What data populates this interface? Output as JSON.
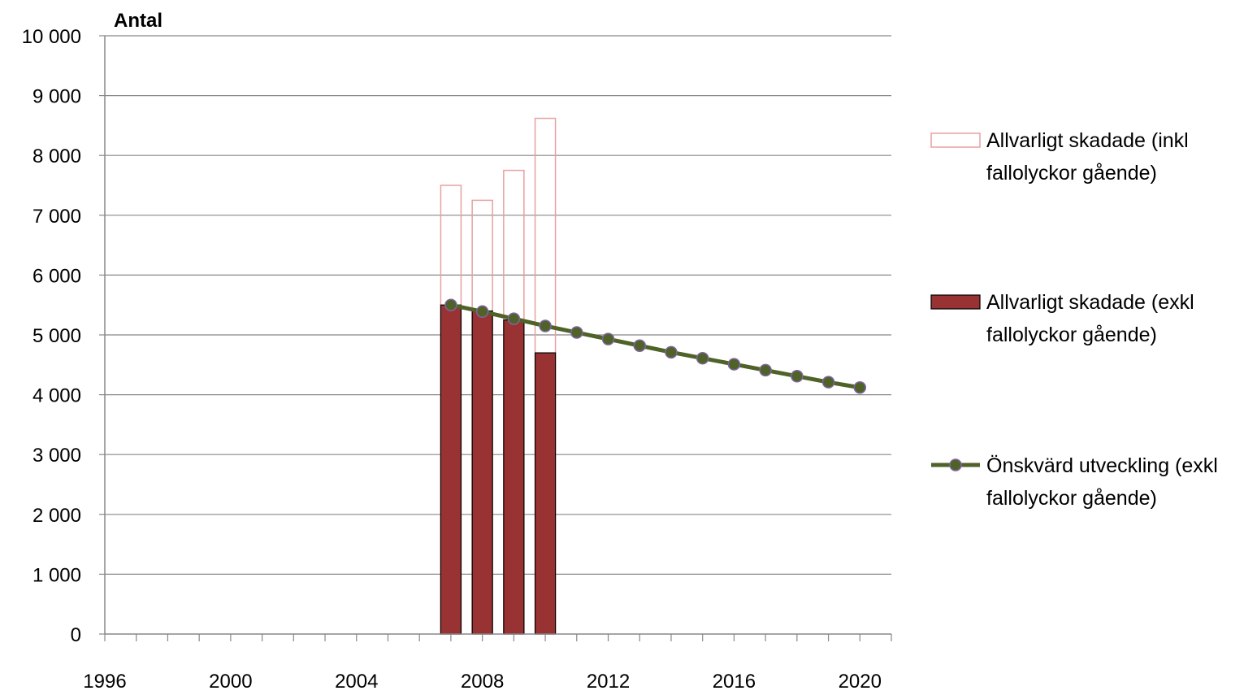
{
  "chart_data": {
    "type": "bar",
    "title": "",
    "ylabel": "Antal",
    "xlabel": "",
    "ylim": [
      0,
      10000
    ],
    "y_ticks": [
      0,
      1000,
      2000,
      3000,
      4000,
      5000,
      6000,
      7000,
      8000,
      9000,
      10000
    ],
    "y_tick_labels": [
      "0",
      "1 000",
      "2 000",
      "3 000",
      "4 000",
      "5 000",
      "6 000",
      "7 000",
      "8 000",
      "9 000",
      "10 000"
    ],
    "x_range": [
      1996,
      2021
    ],
    "x_tick_labels": [
      "1996",
      "2000",
      "2004",
      "2008",
      "2012",
      "2016",
      "2020"
    ],
    "grid": "horizontal",
    "legend_position": "right",
    "series": [
      {
        "name": "Allvarligt skadade (inkl fallolyckor gående)",
        "legend_lines": [
          "Allvarligt skadade (inkl",
          "fallolyckor gående)"
        ],
        "kind": "bar-outline",
        "color": "#e8a0a0",
        "x": [
          2007,
          2008,
          2009,
          2010
        ],
        "values": [
          7500,
          7250,
          7750,
          8620
        ]
      },
      {
        "name": "Allvarligt skadade (exkl fallolyckor gående)",
        "legend_lines": [
          "Allvarligt skadade (exkl",
          "fallolyckor gående)"
        ],
        "kind": "bar-filled",
        "color": "#993333",
        "x": [
          2007,
          2008,
          2009,
          2010
        ],
        "values": [
          5500,
          5400,
          5250,
          4700
        ]
      },
      {
        "name": "Önskvärd utveckling (exkl fallolyckor gående)",
        "legend_lines": [
          "Önskvärd utveckling (exkl",
          "fallolyckor gående)"
        ],
        "kind": "line",
        "color": "#4f6228",
        "x": [
          2007,
          2008,
          2009,
          2010,
          2011,
          2012,
          2013,
          2014,
          2015,
          2016,
          2017,
          2018,
          2019,
          2020
        ],
        "values": [
          5500,
          5390,
          5270,
          5150,
          5040,
          4930,
          4820,
          4710,
          4610,
          4510,
          4410,
          4310,
          4210,
          4120
        ]
      }
    ]
  }
}
